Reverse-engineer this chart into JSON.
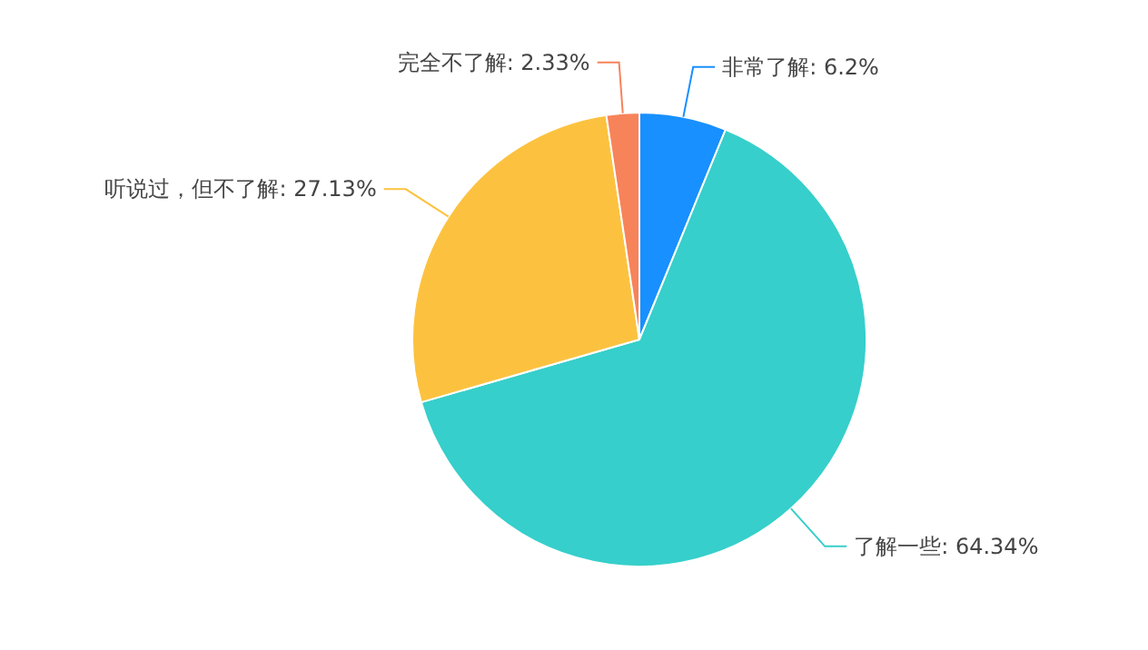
{
  "chart_data": {
    "type": "pie",
    "categories": [
      "非常了解",
      "了解一些",
      "听说过，但不了解",
      "完全不了解"
    ],
    "values": [
      6.2,
      64.34,
      27.13,
      2.33
    ],
    "value_labels": [
      "6.2%",
      "64.34%",
      "27.13%",
      "2.33%"
    ],
    "colors": [
      "#1890ff",
      "#36cfcb",
      "#fcc23f",
      "#f7835a"
    ]
  }
}
